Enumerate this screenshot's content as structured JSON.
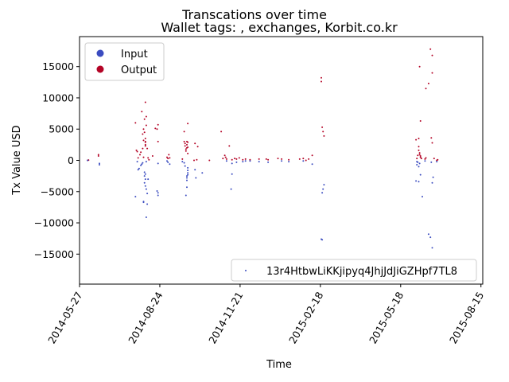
{
  "chart_data": {
    "type": "scatter",
    "title": "Transcations over time",
    "subtitle": "Wallet tags: , exchanges, Korbit.co.kr",
    "xlabel": "Time",
    "ylabel": "Tx Value USD",
    "x_is_date": true,
    "xlim": [
      "2014-05-27",
      "2015-08-17"
    ],
    "ylim": [
      -19800,
      19800
    ],
    "xticks": [
      "2014-05-27",
      "2014-08-24",
      "2014-11-21",
      "2015-02-18",
      "2015-05-18",
      "2015-08-15"
    ],
    "yticks": [
      -15000,
      -10000,
      -5000,
      0,
      5000,
      10000,
      15000
    ],
    "grid": false,
    "legends": [
      {
        "placement": "upper-left",
        "entries": [
          {
            "label": "Input",
            "color": "#3b4cc0",
            "marker": "circle"
          },
          {
            "label": "Output",
            "color": "#b40426",
            "marker": "circle"
          }
        ]
      },
      {
        "placement": "lower-right",
        "entries": [
          {
            "label": "13r4HtbwLiKKjipyq4JhjJdJiGZHpf7TL8",
            "color": "#3b4cc0",
            "marker": "small-dot"
          }
        ]
      }
    ],
    "colors": {
      "input": "#3b4cc0",
      "output": "#b40426"
    },
    "series": [
      {
        "name": "Output",
        "color": "#b40426",
        "points": [
          [
            "2014-06-05",
            0
          ],
          [
            "2014-06-06",
            50
          ],
          [
            "2014-06-17",
            700
          ],
          [
            "2014-06-17",
            900
          ],
          [
            "2014-07-28",
            6000
          ],
          [
            "2014-07-29",
            1600
          ],
          [
            "2014-07-30",
            1400
          ],
          [
            "2014-07-31",
            400
          ],
          [
            "2014-08-02",
            900
          ],
          [
            "2014-08-03",
            1300
          ],
          [
            "2014-08-04",
            7800
          ],
          [
            "2014-08-05",
            1900
          ],
          [
            "2014-08-05",
            4200
          ],
          [
            "2014-08-06",
            5000
          ],
          [
            "2014-08-06",
            3200
          ],
          [
            "2014-08-06",
            500
          ],
          [
            "2014-08-07",
            6600
          ],
          [
            "2014-08-07",
            4500
          ],
          [
            "2014-08-08",
            9300
          ],
          [
            "2014-08-08",
            2900
          ],
          [
            "2014-08-08",
            3500
          ],
          [
            "2014-08-08",
            3000
          ],
          [
            "2014-08-08",
            2500
          ],
          [
            "2014-08-08",
            2300
          ],
          [
            "2014-08-09",
            7000
          ],
          [
            "2014-08-09",
            5600
          ],
          [
            "2014-08-10",
            1900
          ],
          [
            "2014-08-11",
            400
          ],
          [
            "2014-08-12",
            100
          ],
          [
            "2014-08-16",
            700
          ],
          [
            "2014-08-19",
            5100
          ],
          [
            "2014-08-21",
            5000
          ],
          [
            "2014-08-22",
            5700
          ],
          [
            "2014-08-22",
            3000
          ],
          [
            "2014-09-01",
            500
          ],
          [
            "2014-09-02",
            300
          ],
          [
            "2014-09-03",
            900
          ],
          [
            "2014-09-04",
            400
          ],
          [
            "2014-09-18",
            200
          ],
          [
            "2014-09-20",
            4600
          ],
          [
            "2014-09-20",
            3000
          ],
          [
            "2014-09-21",
            2700
          ],
          [
            "2014-09-21",
            2300
          ],
          [
            "2014-09-22",
            1800
          ],
          [
            "2014-09-22",
            1500
          ],
          [
            "2014-09-23",
            3000
          ],
          [
            "2014-09-23",
            2500
          ],
          [
            "2014-09-23",
            2000
          ],
          [
            "2014-09-24",
            5900
          ],
          [
            "2014-09-24",
            2900
          ],
          [
            "2014-09-24",
            2100
          ],
          [
            "2014-09-24",
            1100
          ],
          [
            "2014-10-01",
            0
          ],
          [
            "2014-10-02",
            2700
          ],
          [
            "2014-10-05",
            2200
          ],
          [
            "2014-10-04",
            100
          ],
          [
            "2014-10-18",
            0
          ],
          [
            "2014-10-31",
            4600
          ],
          [
            "2014-11-02",
            300
          ],
          [
            "2014-11-04",
            800
          ],
          [
            "2014-11-05",
            500
          ],
          [
            "2014-11-06",
            200
          ],
          [
            "2014-11-09",
            2300
          ],
          [
            "2014-11-12",
            100
          ],
          [
            "2014-11-15",
            300
          ],
          [
            "2014-11-17",
            200
          ],
          [
            "2014-11-20",
            400
          ],
          [
            "2014-11-24",
            100
          ],
          [
            "2014-11-27",
            200
          ],
          [
            "2014-12-02",
            100
          ],
          [
            "2014-12-12",
            200
          ],
          [
            "2014-12-20",
            200
          ],
          [
            "2014-12-22",
            100
          ],
          [
            "2015-01-02",
            300
          ],
          [
            "2015-01-06",
            200
          ],
          [
            "2015-01-14",
            100
          ],
          [
            "2015-01-26",
            200
          ],
          [
            "2015-01-30",
            300
          ],
          [
            "2015-02-02",
            0
          ],
          [
            "2015-02-05",
            200
          ],
          [
            "2015-02-09",
            800
          ],
          [
            "2015-02-19",
            13200
          ],
          [
            "2015-02-19",
            12600
          ],
          [
            "2015-02-20",
            5300
          ],
          [
            "2015-02-21",
            4600
          ],
          [
            "2015-02-22",
            3900
          ],
          [
            "2015-06-04",
            3300
          ],
          [
            "2015-06-05",
            300
          ],
          [
            "2015-06-06",
            800
          ],
          [
            "2015-06-07",
            3500
          ],
          [
            "2015-06-07",
            2200
          ],
          [
            "2015-06-07",
            1600
          ],
          [
            "2015-06-08",
            15000
          ],
          [
            "2015-06-08",
            1200
          ],
          [
            "2015-06-08",
            900
          ],
          [
            "2015-06-09",
            6300
          ],
          [
            "2015-06-09",
            500
          ],
          [
            "2015-06-09",
            700
          ],
          [
            "2015-06-10",
            300
          ],
          [
            "2015-06-14",
            200
          ],
          [
            "2015-06-15",
            11500
          ],
          [
            "2015-06-15",
            400
          ],
          [
            "2015-06-18",
            12300
          ],
          [
            "2015-06-20",
            17800
          ],
          [
            "2015-06-21",
            3600
          ],
          [
            "2015-06-22",
            16800
          ],
          [
            "2015-06-22",
            14000
          ],
          [
            "2015-06-22",
            2800
          ],
          [
            "2015-06-24",
            300
          ],
          [
            "2015-06-27",
            0
          ],
          [
            "2015-06-28",
            100
          ]
        ]
      },
      {
        "name": "Input",
        "color": "#3b4cc0",
        "points": [
          [
            "2014-06-05",
            0
          ],
          [
            "2014-06-18",
            -500
          ],
          [
            "2014-06-18",
            -700
          ],
          [
            "2014-07-28",
            -5800
          ],
          [
            "2014-07-30",
            -200
          ],
          [
            "2014-07-31",
            -1500
          ],
          [
            "2014-08-01",
            -1300
          ],
          [
            "2014-08-03",
            -800
          ],
          [
            "2014-08-04",
            -600
          ],
          [
            "2014-08-05",
            -400
          ],
          [
            "2014-08-06",
            -6600
          ],
          [
            "2014-08-06",
            -6700
          ],
          [
            "2014-08-07",
            -3600
          ],
          [
            "2014-08-07",
            -2500
          ],
          [
            "2014-08-07",
            -1900
          ],
          [
            "2014-08-08",
            -4100
          ],
          [
            "2014-08-08",
            -3000
          ],
          [
            "2014-08-08",
            -2200
          ],
          [
            "2014-08-09",
            -9100
          ],
          [
            "2014-08-09",
            -4600
          ],
          [
            "2014-08-09",
            -200
          ],
          [
            "2014-08-10",
            -7000
          ],
          [
            "2014-08-10",
            -5300
          ],
          [
            "2014-08-11",
            -3000
          ],
          [
            "2014-08-21",
            -4900
          ],
          [
            "2014-08-22",
            -5600
          ],
          [
            "2014-08-22",
            -5200
          ],
          [
            "2014-08-22",
            -500
          ],
          [
            "2014-09-01",
            -100
          ],
          [
            "2014-09-02",
            -300
          ],
          [
            "2014-09-04",
            -600
          ],
          [
            "2014-09-18",
            -200
          ],
          [
            "2014-09-20",
            -400
          ],
          [
            "2014-09-21",
            -900
          ],
          [
            "2014-09-22",
            -5600
          ],
          [
            "2014-09-23",
            -4300
          ],
          [
            "2014-09-23",
            -3200
          ],
          [
            "2014-09-23",
            -2800
          ],
          [
            "2014-09-23",
            -2500
          ],
          [
            "2014-09-24",
            -2300
          ],
          [
            "2014-09-24",
            -2000
          ],
          [
            "2014-09-24",
            -1600
          ],
          [
            "2014-09-24",
            -1200
          ],
          [
            "2014-10-02",
            -1500
          ],
          [
            "2014-10-03",
            -2800
          ],
          [
            "2014-10-10",
            -2000
          ],
          [
            "2014-11-06",
            -100
          ],
          [
            "2014-11-11",
            -4600
          ],
          [
            "2014-11-12",
            -2200
          ],
          [
            "2014-11-12",
            -500
          ],
          [
            "2014-11-17",
            -300
          ],
          [
            "2014-11-24",
            -200
          ],
          [
            "2014-11-27",
            -100
          ],
          [
            "2014-12-02",
            -100
          ],
          [
            "2014-12-12",
            -200
          ],
          [
            "2014-12-22",
            -300
          ],
          [
            "2015-01-06",
            -100
          ],
          [
            "2015-01-14",
            -200
          ],
          [
            "2015-01-30",
            -100
          ],
          [
            "2015-02-09",
            -600
          ],
          [
            "2015-02-19",
            -12600
          ],
          [
            "2015-02-20",
            -12700
          ],
          [
            "2015-02-20",
            -5200
          ],
          [
            "2015-02-21",
            -4600
          ],
          [
            "2015-02-22",
            -3900
          ],
          [
            "2015-06-04",
            -3300
          ],
          [
            "2015-06-05",
            -200
          ],
          [
            "2015-06-05",
            -700
          ],
          [
            "2015-06-06",
            -300
          ],
          [
            "2015-06-07",
            -1000
          ],
          [
            "2015-06-07",
            -3400
          ],
          [
            "2015-06-08",
            -500
          ],
          [
            "2015-06-09",
            -2300
          ],
          [
            "2015-06-11",
            -5800
          ],
          [
            "2015-06-14",
            -100
          ],
          [
            "2015-06-18",
            -11800
          ],
          [
            "2015-06-20",
            -12300
          ],
          [
            "2015-06-21",
            -300
          ],
          [
            "2015-06-22",
            -3600
          ],
          [
            "2015-06-22",
            -14000
          ],
          [
            "2015-06-23",
            -2700
          ],
          [
            "2015-06-27",
            -200
          ]
        ]
      }
    ]
  }
}
